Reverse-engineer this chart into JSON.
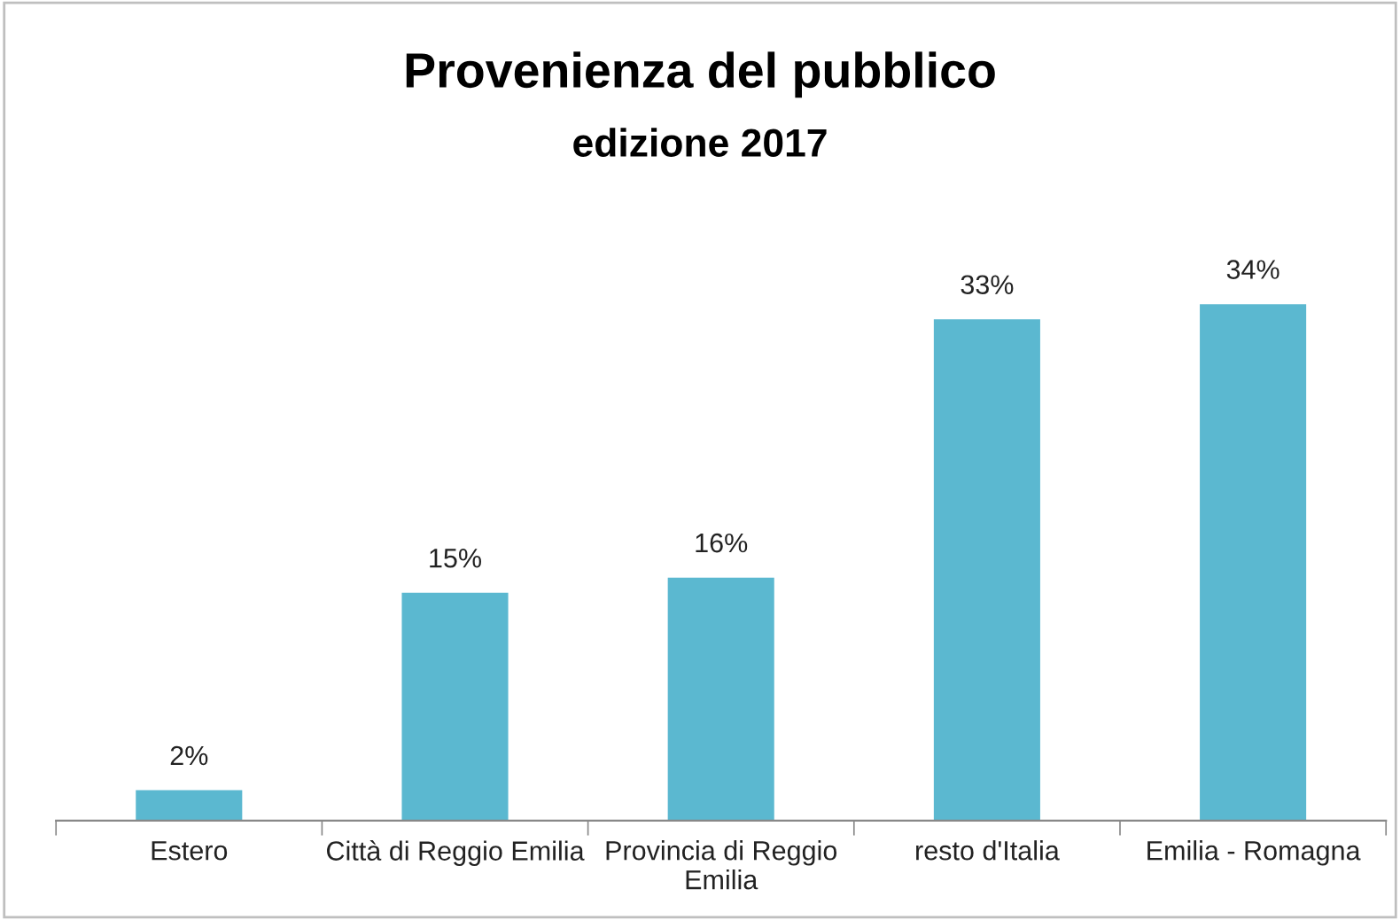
{
  "chart_data": {
    "type": "bar",
    "title": "Provenienza del pubblico",
    "subtitle": "edizione 2017",
    "categories": [
      "Estero",
      "Città di Reggio Emilia",
      "Provincia di Reggio Emilia",
      "resto d'Italia",
      "Emilia - Romagna"
    ],
    "values": [
      2,
      15,
      16,
      33,
      34
    ],
    "value_labels": [
      "2%",
      "15%",
      "16%",
      "33%",
      "34%"
    ],
    "color": "#5bb8d0",
    "grid": false,
    "legend": false
  }
}
